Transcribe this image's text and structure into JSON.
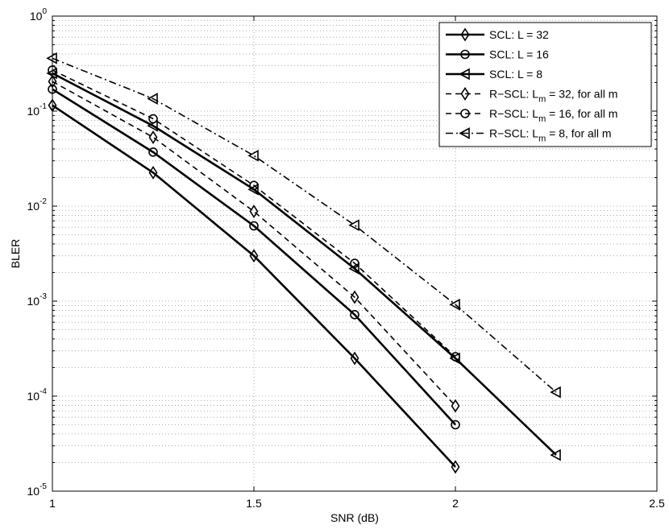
{
  "chart_data": {
    "type": "line",
    "title": "",
    "xlabel": "SNR (dB)",
    "ylabel": "BLER",
    "xlim": [
      1,
      2.5
    ],
    "ylim": [
      1e-05,
      1
    ],
    "yscale": "log",
    "grid": true,
    "legend_position": "top-right",
    "xticks": [
      1,
      1.5,
      2,
      2.5
    ],
    "xtick_labels": [
      "1",
      "1.5",
      "2",
      "2.5"
    ],
    "yticks": [
      {
        "value": 1,
        "base": "10",
        "exp": "0"
      },
      {
        "value": 0.1,
        "base": "10",
        "exp": "-1"
      },
      {
        "value": 0.01,
        "base": "10",
        "exp": "-2"
      },
      {
        "value": 0.001,
        "base": "10",
        "exp": "-3"
      },
      {
        "value": 0.0001,
        "base": "10",
        "exp": "-4"
      },
      {
        "value": 1e-05,
        "base": "10",
        "exp": "-5"
      }
    ],
    "series": [
      {
        "name": "SCL: L = 32",
        "legend_label": {
          "main": "SCL: L = 32",
          "sub": "",
          "rest": ""
        },
        "marker": "diamond",
        "style": "solid",
        "x": [
          1,
          1.25,
          1.5,
          1.75,
          2
        ],
        "y": [
          0.115,
          0.0225,
          0.003,
          0.00025,
          1.8e-05
        ]
      },
      {
        "name": "SCL: L = 16",
        "legend_label": {
          "main": "SCL: L = 16",
          "sub": "",
          "rest": ""
        },
        "marker": "circle",
        "style": "solid",
        "x": [
          1,
          1.25,
          1.5,
          1.75,
          2
        ],
        "y": [
          0.17,
          0.037,
          0.0062,
          0.00072,
          5e-05
        ]
      },
      {
        "name": "SCL: L = 8",
        "legend_label": {
          "main": "SCL: L = 8",
          "sub": "",
          "rest": ""
        },
        "marker": "triangle-left",
        "style": "solid",
        "x": [
          1,
          1.25,
          1.5,
          1.75,
          2,
          2.25
        ],
        "y": [
          0.25,
          0.07,
          0.015,
          0.0022,
          0.00025,
          2.4e-05
        ]
      },
      {
        "name": "R-SCL: Lm = 32, for all m",
        "legend_label": {
          "main": "R−SCL: L",
          "sub": "m",
          "rest": " = 32, for all m"
        },
        "marker": "diamond",
        "style": "dashed",
        "x": [
          1,
          1.25,
          1.5,
          1.75,
          2
        ],
        "y": [
          0.205,
          0.053,
          0.0088,
          0.0011,
          7.9e-05
        ]
      },
      {
        "name": "R-SCL: Lm = 16, for all m",
        "legend_label": {
          "main": "R−SCL: L",
          "sub": "m",
          "rest": " = 16, for all m"
        },
        "marker": "circle",
        "style": "dashed",
        "x": [
          1,
          1.25,
          1.5,
          1.75,
          2
        ],
        "y": [
          0.27,
          0.083,
          0.0165,
          0.0025,
          0.00026
        ]
      },
      {
        "name": "R-SCL: Lm = 8, for all m",
        "legend_label": {
          "main": "R−SCL: L",
          "sub": "m",
          "rest": " = 8, for all m"
        },
        "marker": "triangle-left",
        "style": "dashdot",
        "x": [
          1,
          1.25,
          1.5,
          1.75,
          2,
          2.25
        ],
        "y": [
          0.36,
          0.135,
          0.034,
          0.0063,
          0.00092,
          0.00011
        ]
      }
    ]
  }
}
